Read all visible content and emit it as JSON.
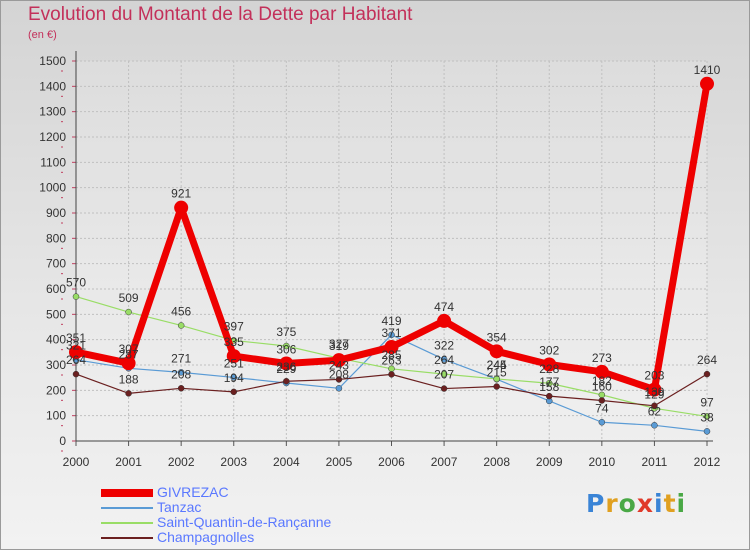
{
  "title": "Evolution du Montant de la Dette par Habitant",
  "unit": "(en €)",
  "logo": {
    "letters": [
      {
        "ch": "P",
        "color": "#3a84d6"
      },
      {
        "ch": "r",
        "color": "#e0a020"
      },
      {
        "ch": "o",
        "color": "#49a845"
      },
      {
        "ch": "x",
        "color": "#e03a2a"
      },
      {
        "ch": "i",
        "color": "#3a84d6"
      },
      {
        "ch": "t",
        "color": "#e0a020"
      },
      {
        "ch": "i",
        "color": "#49a845"
      }
    ]
  },
  "chart_data": {
    "type": "line",
    "x": [
      "2000",
      "2001",
      "2002",
      "2003",
      "2004",
      "2005",
      "2006",
      "2007",
      "2008",
      "2009",
      "2010",
      "2011",
      "2012"
    ],
    "ylim": [
      0,
      1500
    ],
    "yticks": [
      0,
      100,
      200,
      300,
      400,
      500,
      600,
      700,
      800,
      900,
      1000,
      1100,
      1200,
      1300,
      1400,
      1500
    ],
    "grid": true,
    "legend_position": "bottom-left",
    "series": [
      {
        "name": "GIVREZAC",
        "color": "#ee0000",
        "bold": true,
        "values": [
          351,
          307,
          921,
          335,
          306,
          319,
          371,
          474,
          354,
          302,
          273,
          203,
          1410
        ],
        "labels": [
          "351",
          "307",
          "921",
          "335",
          "306",
          "319",
          "371",
          "474",
          "354",
          "302",
          "273",
          "203",
          "1410"
        ]
      },
      {
        "name": "Tanzac",
        "color": "#5a9bd5",
        "values": [
          321,
          287,
          271,
          251,
          229,
          208,
          419,
          322,
          244,
          158,
          74,
          62,
          38
        ],
        "labels": [
          "321",
          "287",
          "271",
          "251",
          "229",
          "208",
          "419",
          "322",
          "244",
          "158",
          "74",
          "62",
          "38"
        ]
      },
      {
        "name": "Saint-Quantin-de-Rançanne",
        "color": "#99dd66",
        "values": [
          570,
          509,
          456,
          397,
          375,
          327,
          285,
          264,
          245,
          228,
          182,
          129,
          97
        ],
        "labels": [
          "570",
          "509",
          "456",
          "397",
          "375",
          "327",
          "285",
          "264",
          "245",
          "228",
          "182",
          "129",
          "97"
        ]
      },
      {
        "name": "Champagnolles",
        "color": "#6b2020",
        "values": [
          264,
          188,
          208,
          194,
          236,
          243,
          263,
          207,
          215,
          177,
          160,
          139,
          264
        ],
        "labels": [
          "264",
          "188",
          "208",
          "194",
          "236",
          "243",
          "263",
          "207",
          "215",
          "177",
          "160",
          "139",
          "264"
        ]
      }
    ]
  }
}
